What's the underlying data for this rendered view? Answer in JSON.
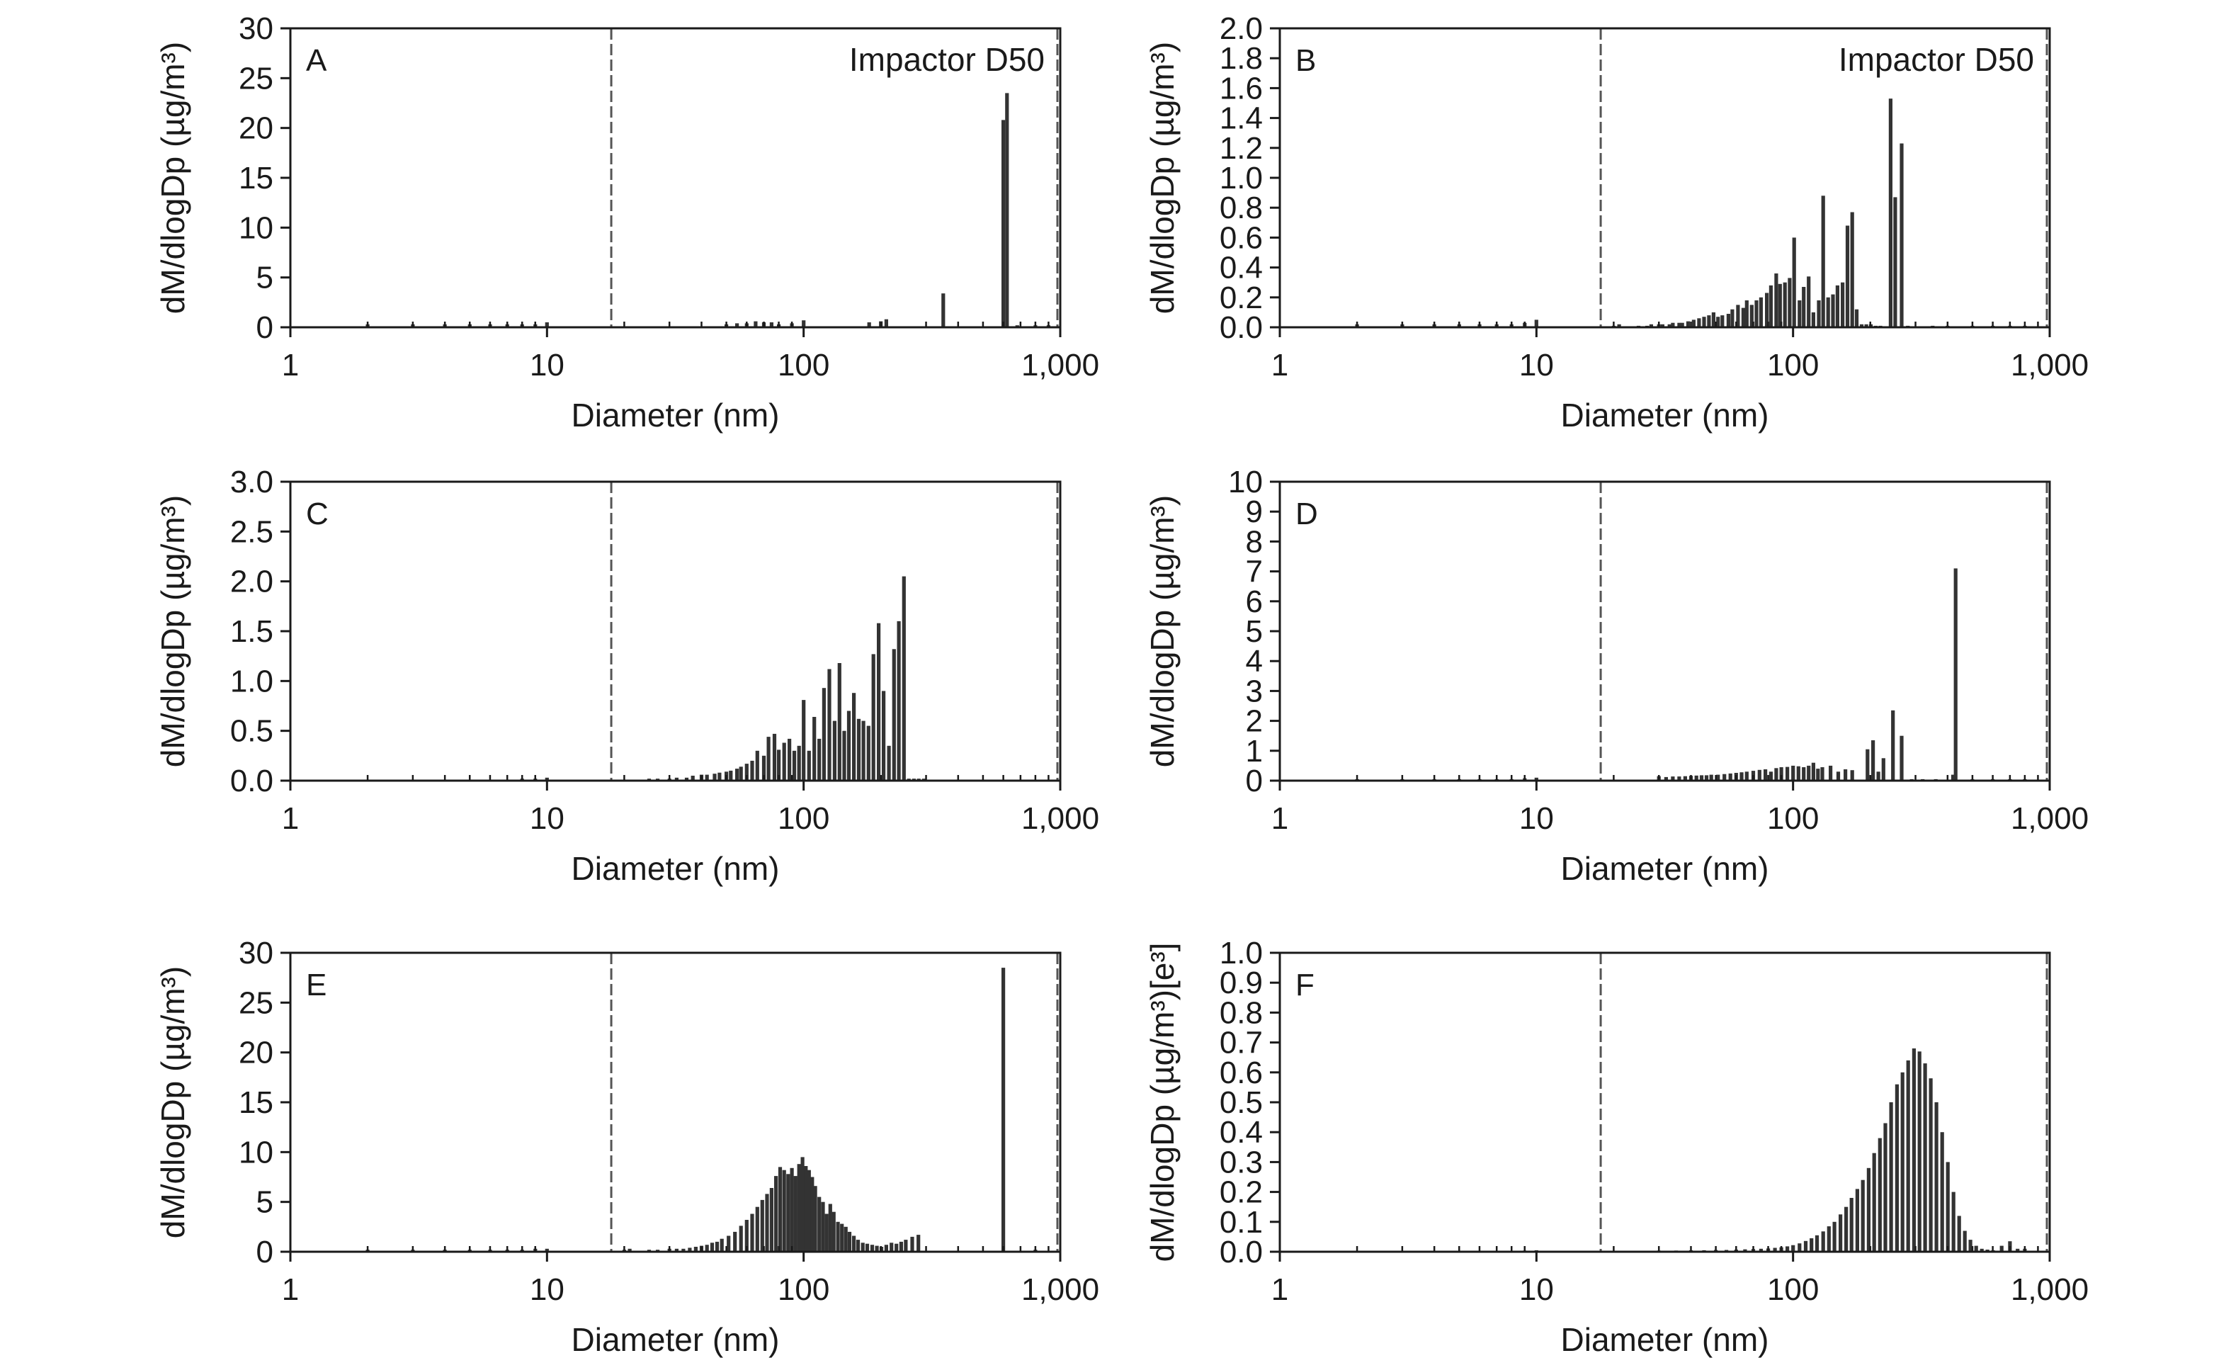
{
  "figure": {
    "panels": [
      {
        "letter": "A",
        "annotation": "Impactor D50",
        "ylabel": "dM/dlogDp (µg/m³)",
        "xlabel": "Diameter (nm)",
        "xticks": [
          "1",
          "10",
          "100",
          "1,000"
        ],
        "yticks": [
          "0",
          "5",
          "10",
          "15",
          "20",
          "25",
          "30"
        ]
      },
      {
        "letter": "B",
        "annotation": "Impactor D50",
        "ylabel": "dM/dlogDp (µg/m³)",
        "xlabel": "Diameter (nm)",
        "xticks": [
          "1",
          "10",
          "100",
          "1,000"
        ],
        "yticks": [
          "0.0",
          "0.2",
          "0.4",
          "0.6",
          "0.8",
          "1.0",
          "1.2",
          "1.4",
          "1.6",
          "1.8",
          "2.0"
        ]
      },
      {
        "letter": "C",
        "annotation": "",
        "ylabel": "dM/dlogDp (µg/m³)",
        "xlabel": "Diameter (nm)",
        "xticks": [
          "1",
          "10",
          "100",
          "1,000"
        ],
        "yticks": [
          "0.0",
          "0.5",
          "1.0",
          "1.5",
          "2.0",
          "2.5",
          "3.0"
        ]
      },
      {
        "letter": "D",
        "annotation": "",
        "ylabel": "dM/dlogDp (µg/m³)",
        "xlabel": "Diameter (nm)",
        "xticks": [
          "1",
          "10",
          "100",
          "1,000"
        ],
        "yticks": [
          "0",
          "1",
          "2",
          "3",
          "4",
          "5",
          "6",
          "7",
          "8",
          "9",
          "10"
        ]
      },
      {
        "letter": "E",
        "annotation": "",
        "ylabel": "dM/dlogDp (µg/m³)",
        "xlabel": "Diameter (nm)",
        "xticks": [
          "1",
          "10",
          "100",
          "1,000"
        ],
        "yticks": [
          "0",
          "5",
          "10",
          "15",
          "20",
          "25",
          "30"
        ]
      },
      {
        "letter": "F",
        "annotation": "",
        "ylabel": "dM/dlogDp (µg/m³)[e³]",
        "xlabel": "Diameter (nm)",
        "xticks": [
          "1",
          "10",
          "100",
          "1,000"
        ],
        "yticks": [
          "0.0",
          "0.1",
          "0.2",
          "0.3",
          "0.4",
          "0.5",
          "0.6",
          "0.7",
          "0.8",
          "0.9",
          "1.0"
        ]
      }
    ]
  },
  "chart_data": [
    {
      "type": "bar",
      "panel": "A",
      "xscale": "log",
      "xlim": [
        1,
        1000
      ],
      "ylim": [
        0,
        30
      ],
      "vlines": [
        17.8,
        1000
      ],
      "x": [
        2,
        3,
        4,
        5,
        6,
        7,
        8,
        9,
        10,
        50,
        55,
        60,
        65,
        70,
        75,
        80,
        90,
        100,
        180,
        200,
        210,
        350,
        600,
        620,
        680,
        800,
        900
      ],
      "values": [
        0.3,
        0.3,
        0.3,
        0.3,
        0.3,
        0.3,
        0.3,
        0.3,
        0.5,
        0.3,
        0.4,
        0.4,
        0.6,
        0.5,
        0.5,
        0.3,
        0.4,
        0.7,
        0.5,
        0.6,
        0.8,
        3.4,
        20.8,
        23.5,
        0.2,
        0.2,
        0.2
      ]
    },
    {
      "type": "bar",
      "panel": "B",
      "xscale": "log",
      "xlim": [
        1,
        1000
      ],
      "ylim": [
        0,
        2.0
      ],
      "vlines": [
        17.8,
        1000
      ],
      "x": [
        2,
        3,
        4,
        5,
        6,
        7,
        8,
        9,
        10,
        20,
        21,
        25,
        27,
        28,
        30,
        31,
        33,
        34,
        36,
        37,
        39,
        41,
        43,
        45,
        47,
        49,
        51,
        53,
        56,
        58,
        61,
        64,
        66,
        69,
        72,
        75,
        79,
        82,
        86,
        89,
        93,
        97,
        101,
        106,
        110,
        115,
        120,
        126,
        131,
        137,
        143,
        149,
        156,
        163,
        170,
        177,
        185,
        193,
        201,
        210,
        219,
        240,
        250,
        265,
        280,
        350,
        400,
        500,
        600,
        700,
        800
      ],
      "values": [
        0.02,
        0.02,
        0.02,
        0.02,
        0.02,
        0.02,
        0.02,
        0.03,
        0.05,
        0.01,
        0.02,
        0.01,
        0.01,
        0.02,
        0.02,
        0.02,
        0.02,
        0.03,
        0.03,
        0.03,
        0.04,
        0.05,
        0.06,
        0.07,
        0.08,
        0.1,
        0.07,
        0.08,
        0.09,
        0.12,
        0.15,
        0.13,
        0.18,
        0.15,
        0.18,
        0.2,
        0.23,
        0.28,
        0.36,
        0.29,
        0.3,
        0.33,
        0.6,
        0.18,
        0.27,
        0.34,
        0.1,
        0.18,
        0.88,
        0.2,
        0.22,
        0.28,
        0.3,
        0.68,
        0.77,
        0.12,
        0.02,
        0.02,
        0.02,
        0.01,
        0.01,
        1.53,
        0.87,
        1.23,
        0.01,
        0.01,
        0.01,
        0.01,
        0.01,
        0.01,
        0.01
      ]
    },
    {
      "type": "bar",
      "panel": "C",
      "xscale": "log",
      "xlim": [
        1,
        1000
      ],
      "ylim": [
        0,
        3.0
      ],
      "vlines": [
        17.8,
        1000
      ],
      "x": [
        2,
        3,
        4,
        5,
        6,
        7,
        8,
        9,
        10,
        25,
        27,
        30,
        32,
        35,
        37,
        40,
        42,
        45,
        47,
        50,
        52,
        55,
        57,
        60,
        63,
        66,
        70,
        73,
        77,
        80,
        84,
        88,
        92,
        96,
        100,
        105,
        110,
        115,
        120,
        126,
        132,
        138,
        144,
        150,
        157,
        164,
        171,
        179,
        187,
        196,
        205,
        215,
        225,
        235,
        246,
        257,
        269,
        281,
        294,
        400,
        500,
        600,
        700,
        800
      ],
      "values": [
        0.01,
        0.01,
        0.01,
        0.01,
        0.01,
        0.01,
        0.02,
        0.02,
        0.03,
        0.02,
        0.02,
        0.02,
        0.03,
        0.03,
        0.05,
        0.06,
        0.06,
        0.07,
        0.08,
        0.09,
        0.1,
        0.12,
        0.14,
        0.17,
        0.2,
        0.3,
        0.25,
        0.44,
        0.47,
        0.31,
        0.38,
        0.42,
        0.3,
        0.35,
        0.81,
        0.3,
        0.64,
        0.42,
        0.93,
        1.12,
        0.6,
        1.18,
        0.5,
        0.7,
        0.88,
        0.62,
        0.6,
        0.55,
        1.27,
        1.58,
        0.9,
        0.35,
        1.32,
        1.6,
        2.05,
        0.02,
        0.02,
        0.02,
        0.02,
        0.01,
        0.01,
        0.01,
        0.01,
        0.01
      ]
    },
    {
      "type": "bar",
      "panel": "D",
      "xscale": "log",
      "xlim": [
        1,
        1000
      ],
      "ylim": [
        0,
        10
      ],
      "vlines": [
        17.8,
        1000
      ],
      "x": [
        2,
        3,
        4,
        5,
        6,
        7,
        8,
        9,
        10,
        20,
        21,
        30,
        32,
        34,
        36,
        38,
        40,
        42,
        44,
        46,
        48,
        51,
        54,
        57,
        60,
        63,
        66,
        70,
        74,
        78,
        82,
        86,
        90,
        95,
        100,
        105,
        110,
        115,
        120,
        125,
        130,
        140,
        150,
        160,
        170,
        195,
        205,
        215,
        225,
        245,
        265,
        290,
        320,
        360,
        420,
        430,
        500,
        600,
        700,
        800
      ],
      "values": [
        0.05,
        0.05,
        0.05,
        0.05,
        0.05,
        0.05,
        0.05,
        0.08,
        0.1,
        0.02,
        0.03,
        0.15,
        0.12,
        0.14,
        0.14,
        0.15,
        0.16,
        0.17,
        0.18,
        0.18,
        0.2,
        0.2,
        0.22,
        0.24,
        0.26,
        0.28,
        0.3,
        0.33,
        0.36,
        0.38,
        0.3,
        0.42,
        0.45,
        0.46,
        0.5,
        0.48,
        0.45,
        0.5,
        0.6,
        0.4,
        0.45,
        0.5,
        0.3,
        0.38,
        0.35,
        1.05,
        1.35,
        0.3,
        0.75,
        2.35,
        1.5,
        0.05,
        0.05,
        0.05,
        0.2,
        7.1,
        0.05,
        0.05,
        0.05,
        0.05
      ]
    },
    {
      "type": "bar",
      "panel": "E",
      "xscale": "log",
      "xlim": [
        1,
        1000
      ],
      "ylim": [
        0,
        30
      ],
      "vlines": [
        17.8,
        1000
      ],
      "x": [
        2,
        3,
        4,
        5,
        6,
        7,
        8,
        9,
        10,
        20,
        21,
        25,
        27,
        30,
        32,
        34,
        36,
        38,
        40,
        42,
        44,
        46,
        48,
        51,
        54,
        57,
        60,
        63,
        66,
        69,
        72,
        75,
        78,
        81,
        84,
        87,
        90,
        93,
        96,
        99,
        102,
        105,
        108,
        111,
        115,
        119,
        123,
        127,
        131,
        136,
        141,
        146,
        151,
        157,
        163,
        170,
        177,
        185,
        193,
        201,
        210,
        220,
        230,
        240,
        250,
        265,
        280,
        600,
        800
      ],
      "values": [
        0.2,
        0.2,
        0.2,
        0.2,
        0.2,
        0.2,
        0.2,
        0.3,
        0.3,
        0.2,
        0.3,
        0.2,
        0.2,
        0.3,
        0.3,
        0.3,
        0.4,
        0.5,
        0.6,
        0.7,
        0.9,
        1.0,
        1.3,
        1.6,
        2.0,
        2.6,
        3.2,
        3.8,
        4.5,
        5.2,
        5.8,
        6.4,
        7.6,
        8.5,
        8.2,
        7.8,
        8.4,
        7.6,
        8.8,
        9.5,
        8.6,
        8.2,
        7.5,
        6.6,
        5.5,
        5.0,
        3.8,
        4.8,
        4.0,
        3.0,
        2.8,
        2.5,
        2.0,
        1.6,
        1.2,
        0.9,
        0.8,
        0.7,
        0.6,
        0.5,
        0.7,
        0.9,
        0.8,
        1.0,
        1.2,
        1.5,
        1.7,
        28.5,
        0.2
      ]
    },
    {
      "type": "bar",
      "panel": "F",
      "xscale": "log",
      "xlim": [
        1,
        1000
      ],
      "ylim": [
        0,
        1.0
      ],
      "vlines": [
        17.8,
        1000
      ],
      "x": [
        2,
        3,
        4,
        5,
        6,
        7,
        8,
        9,
        10,
        20,
        22,
        25,
        28,
        30,
        35,
        40,
        45,
        50,
        55,
        60,
        65,
        70,
        75,
        80,
        85,
        90,
        95,
        100,
        106,
        112,
        118,
        124,
        131,
        138,
        145,
        153,
        161,
        169,
        178,
        187,
        197,
        207,
        218,
        229,
        241,
        254,
        267,
        281,
        296,
        311,
        327,
        344,
        362,
        381,
        401,
        422,
        444,
        467,
        491,
        517,
        544,
        572,
        602,
        650,
        700,
        750,
        800
      ],
      "values": [
        0.003,
        0.003,
        0.003,
        0.003,
        0.003,
        0.003,
        0.003,
        0.004,
        0.005,
        0.002,
        0.003,
        0.003,
        0.003,
        0.004,
        0.004,
        0.005,
        0.005,
        0.006,
        0.006,
        0.007,
        0.008,
        0.009,
        0.01,
        0.011,
        0.013,
        0.015,
        0.018,
        0.022,
        0.028,
        0.036,
        0.045,
        0.055,
        0.068,
        0.085,
        0.1,
        0.125,
        0.15,
        0.18,
        0.21,
        0.24,
        0.28,
        0.33,
        0.38,
        0.43,
        0.5,
        0.56,
        0.6,
        0.64,
        0.68,
        0.67,
        0.63,
        0.58,
        0.5,
        0.4,
        0.3,
        0.2,
        0.12,
        0.07,
        0.04,
        0.02,
        0.01,
        0.007,
        0.005,
        0.02,
        0.035,
        0.01,
        0.01
      ]
    }
  ]
}
